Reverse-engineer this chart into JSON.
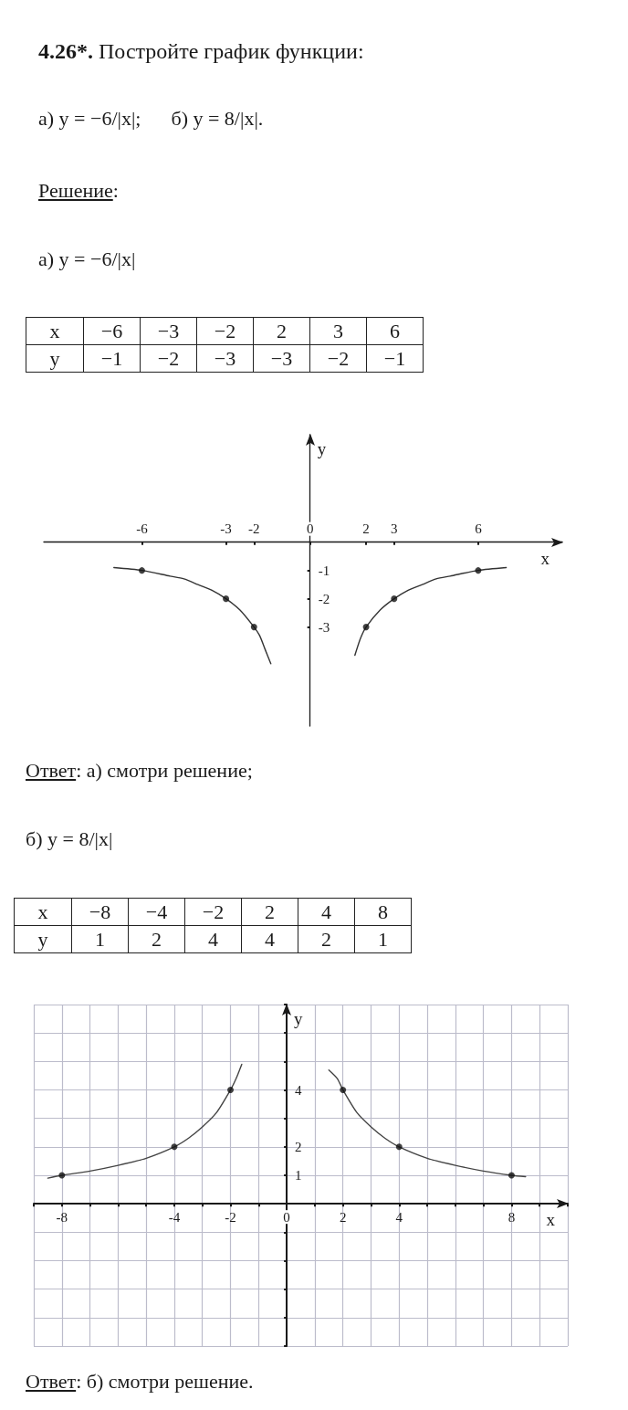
{
  "chart_data": [
    {
      "type": "other",
      "title": "4.26*. Постройте график функции:",
      "subtitle": "а) y = −6/|x|;      б) y = 8/|x|.",
      "annotations": [
        "Решение:",
        "а) y = −6/|x|"
      ],
      "xlabel": "x",
      "ylabel": "y",
      "categories": [
        "−6",
        "−3",
        "−2",
        "2",
        "3",
        "6"
      ],
      "values": [
        -1,
        -2,
        -3,
        -3,
        -2,
        -1
      ],
      "data_labels": true
    },
    {
      "type": "line",
      "annotations": [
        "Ответ: а) смотри решение;"
      ],
      "xlabel": "x",
      "ylabel": "y",
      "xlim": [
        -9.5,
        9
      ],
      "ylim": [
        -6.5,
        3.8
      ],
      "xticks": [
        -6,
        -3,
        -2,
        0,
        2,
        3,
        6
      ],
      "yticks": [
        -3,
        -2,
        -1
      ],
      "series": [
        {
          "type": "line",
          "color": "#333333",
          "marker": "none",
          "x": [
            -7,
            -6,
            -5,
            -4.5,
            -4,
            -3.5,
            -3,
            -2.5,
            -2,
            -1.8,
            -1.6,
            -1.4,
            0,
            1.6,
            1.8,
            2,
            2.5,
            3,
            3.5,
            4,
            4.5,
            5,
            6,
            7
          ],
          "values": [
            -0.9,
            -1,
            -1.2,
            -1.3,
            -1.5,
            -1.7,
            -2,
            -2.4,
            -3,
            -3.3,
            -3.8,
            -4.3,
            null,
            -4,
            -3.4,
            -3,
            -2.4,
            -2,
            -1.7,
            -1.5,
            -1.3,
            -1.2,
            -1,
            -0.9
          ]
        },
        {
          "type": "scatter",
          "color": "#111111",
          "marker": "circle",
          "x": [
            -6,
            -3,
            -2,
            2,
            3,
            6
          ],
          "values": [
            -1,
            -2,
            -3,
            -3,
            -2,
            -1
          ]
        }
      ]
    },
    {
      "type": "other",
      "title": "б) y = 8/|x|",
      "xlabel": "x",
      "ylabel": "y",
      "categories": [
        "−8",
        "−4",
        "−2",
        "2",
        "4",
        "8"
      ],
      "values": [
        1,
        2,
        4,
        4,
        2,
        1
      ],
      "data_labels": true
    },
    {
      "type": "line",
      "annotations": [
        "Ответ: б) смотри решение."
      ],
      "xlabel": "x",
      "ylabel": "y",
      "xlim": [
        -9,
        10
      ],
      "ylim": [
        -5,
        7
      ],
      "grid": true,
      "xticks": [
        {
          "value": -9,
          "label": null
        },
        -8,
        {
          "value": -7,
          "label": null
        },
        {
          "value": -6,
          "label": null
        },
        {
          "value": -5,
          "label": null
        },
        -4,
        {
          "value": -3,
          "label": null
        },
        -2,
        {
          "value": -1,
          "label": null
        },
        0,
        {
          "value": 1,
          "label": null
        },
        2,
        {
          "value": 3,
          "label": null
        },
        4,
        {
          "value": 5,
          "label": null
        },
        {
          "value": 6,
          "label": null
        },
        {
          "value": 7,
          "label": null
        },
        8,
        {
          "value": 9,
          "label": null
        },
        {
          "value": 10,
          "label": null
        }
      ],
      "yticks": [
        {
          "value": -5,
          "label": null
        },
        {
          "value": -4,
          "label": null
        },
        {
          "value": -3,
          "label": null
        },
        {
          "value": -2,
          "label": null
        },
        {
          "value": -1,
          "label": null
        },
        {
          "value": 0,
          "label": null
        },
        1,
        2,
        {
          "value": 3,
          "label": null
        },
        4,
        {
          "value": 5,
          "label": null
        },
        {
          "value": 6,
          "label": null
        },
        {
          "value": 7,
          "label": null
        }
      ],
      "series": [
        {
          "type": "line",
          "color": "#444444",
          "marker": "none",
          "x": [
            -8.5,
            -8,
            -7,
            -6,
            -5,
            -4,
            -3.5,
            -3,
            -2.5,
            -2,
            -1.8,
            -1.6,
            0,
            1.5,
            1.8,
            2,
            2.5,
            3,
            3.5,
            4,
            5,
            6,
            7,
            8,
            8.5
          ],
          "values": [
            0.9,
            1,
            1.15,
            1.35,
            1.6,
            2,
            2.3,
            2.7,
            3.2,
            4,
            4.4,
            4.9,
            null,
            4.7,
            4.4,
            4,
            3.2,
            2.7,
            2.3,
            2,
            1.6,
            1.35,
            1.15,
            1,
            0.95
          ]
        },
        {
          "type": "scatter",
          "color": "#111111",
          "marker": "circle",
          "x": [
            -8,
            -4,
            -2,
            2,
            4,
            8
          ],
          "values": [
            1,
            2,
            4,
            4,
            2,
            1
          ]
        }
      ]
    }
  ]
}
